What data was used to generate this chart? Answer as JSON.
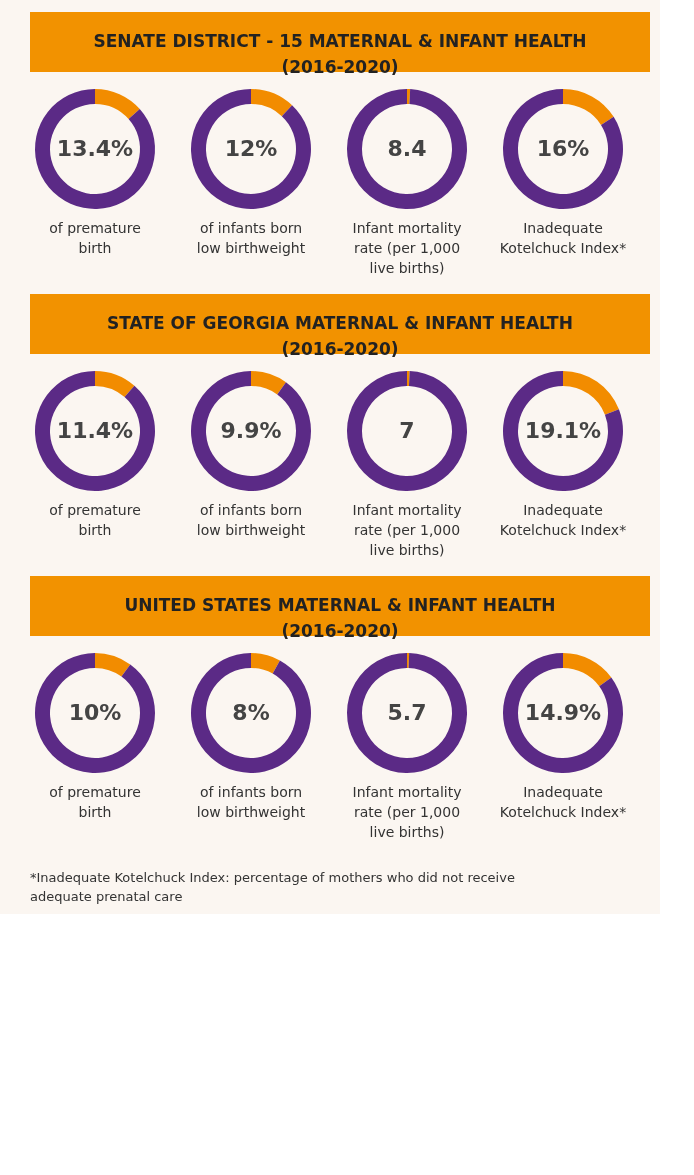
{
  "chart_data": [
    {
      "type": "other",
      "title": "SENATE DISTRICT - 15 MATERNAL & INFANT HEALTH (2016-2020)"
    },
    {
      "type": "donut",
      "xlabel": "of premature birth",
      "categories": [
        null,
        null
      ],
      "values": [
        13.4,
        86.6
      ],
      "colors": [
        "#f28c00",
        "#5b2a86"
      ],
      "value_labels": [
        "13.4%",
        null
      ]
    },
    {
      "type": "donut",
      "xlabel": "of infants born low birthweight",
      "categories": [
        null,
        null
      ],
      "values": [
        12,
        88
      ],
      "colors": [
        "#f28c00",
        "#5b2a86"
      ],
      "value_labels": [
        "12%",
        null
      ]
    },
    {
      "type": "donut",
      "xlabel": "Infant mortality rate (per 1,000 live births)",
      "categories": [
        null,
        null
      ],
      "values": [
        8.4,
        991.6
      ],
      "colors": [
        "#f28c00",
        "#5b2a86"
      ],
      "value_labels": [
        "8.4",
        null
      ]
    },
    {
      "type": "donut",
      "xlabel": "Inadequate Kotelchuck Index*",
      "categories": [
        null,
        null
      ],
      "values": [
        16,
        84
      ],
      "colors": [
        "#f28c00",
        "#5b2a86"
      ],
      "value_labels": [
        "16%",
        null
      ]
    },
    {
      "type": "other",
      "title": "STATE OF GEORGIA MATERNAL & INFANT HEALTH (2016-2020)"
    },
    {
      "type": "donut",
      "xlabel": "of premature birth",
      "categories": [
        null,
        null
      ],
      "values": [
        11.4,
        88.6
      ],
      "colors": [
        "#f28c00",
        "#5b2a86"
      ],
      "value_labels": [
        "11.4%",
        null
      ]
    },
    {
      "type": "donut",
      "xlabel": "of infants born low birthweight",
      "categories": [
        null,
        null
      ],
      "values": [
        9.9,
        90.1
      ],
      "colors": [
        "#f28c00",
        "#5b2a86"
      ],
      "value_labels": [
        "9.9%",
        null
      ]
    },
    {
      "type": "donut",
      "xlabel": "Infant mortality rate (per 1,000 live births)",
      "categories": [
        null,
        null
      ],
      "values": [
        7,
        993
      ],
      "colors": [
        "#f28c00",
        "#5b2a86"
      ],
      "value_labels": [
        "7",
        null
      ]
    },
    {
      "type": "donut",
      "xlabel": "Inadequate Kotelchuck Index*",
      "categories": [
        null,
        null
      ],
      "values": [
        19.1,
        80.9
      ],
      "colors": [
        "#f28c00",
        "#5b2a86"
      ],
      "value_labels": [
        "19.1%",
        null
      ]
    },
    {
      "type": "other",
      "title": "UNITED STATES MATERNAL & INFANT HEALTH (2016-2020)"
    },
    {
      "type": "donut",
      "xlabel": "of premature birth",
      "categories": [
        null,
        null
      ],
      "values": [
        10,
        90
      ],
      "colors": [
        "#f28c00",
        "#5b2a86"
      ],
      "value_labels": [
        "10%",
        null
      ]
    },
    {
      "type": "donut",
      "xlabel": "of infants born low birthweight",
      "categories": [
        null,
        null
      ],
      "values": [
        8,
        92
      ],
      "colors": [
        "#f28c00",
        "#5b2a86"
      ],
      "value_labels": [
        "8%",
        null
      ]
    },
    {
      "type": "donut",
      "xlabel": "Infant mortality rate (per 1,000 live births)",
      "categories": [
        null,
        null
      ],
      "values": [
        5.7,
        994.3
      ],
      "colors": [
        "#f28c00",
        "#5b2a86"
      ],
      "value_labels": [
        "5.7",
        null
      ]
    },
    {
      "type": "donut",
      "xlabel": "Inadequate Kotelchuck Index*",
      "categories": [
        null,
        null
      ],
      "values": [
        14.9,
        85.1
      ],
      "colors": [
        "#f28c00",
        "#5b2a86"
      ],
      "value_labels": [
        "14.9%",
        null
      ]
    },
    {
      "type": "other",
      "annotations": [
        "*Inadequate Kotelchuck Index: percentage of mothers who did not receive adequate prenatal care"
      ]
    }
  ]
}
